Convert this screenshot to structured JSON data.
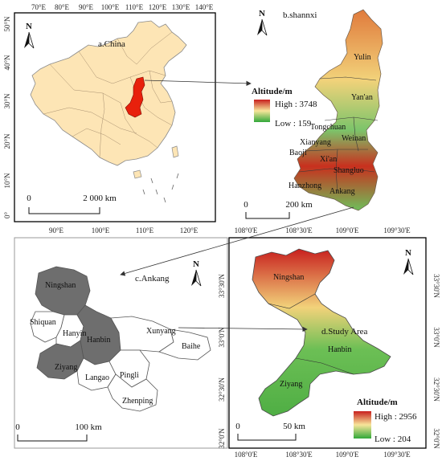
{
  "panels": {
    "china": {
      "label": "a.China",
      "top_ticks": [
        "70°E",
        "80°E",
        "90°E",
        "100°E",
        "110°E",
        "120°E",
        "130°E",
        "140°E"
      ],
      "bottom_ticks": [
        "90°E",
        "100°E",
        "110°E",
        "120°E"
      ],
      "left_ticks": [
        "50°N",
        "40°N",
        "30°N",
        "20°N",
        "10°N",
        "0°"
      ],
      "scale": {
        "zero": "0",
        "distance": "2 000 km"
      },
      "north": "N"
    },
    "shannxi": {
      "label": "b.shannxi",
      "north": "N",
      "legend": {
        "title": "Altitude/m",
        "high": "High : 3748",
        "low": "Low : 159"
      },
      "places": [
        "Yulin",
        "Yan'an",
        "Tongchuan",
        "Weinan",
        "Xianyang",
        "Baoji",
        "Xi'an",
        "Shangluo",
        "Hanzhong",
        "Ankang"
      ],
      "scale": {
        "zero": "0",
        "distance": "200 km"
      }
    },
    "ankang": {
      "label": "c.Ankang",
      "north": "N",
      "counties": [
        "Ningshan",
        "Shiquan",
        "Hanyin",
        "Hanbin",
        "Xunyang",
        "Baihe",
        "Ziyang",
        "Langao",
        "Pingli",
        "Zhenping"
      ],
      "scale": {
        "zero": "0",
        "distance": "100 km"
      }
    },
    "study": {
      "label": "d.Study Area",
      "north": "N",
      "top_ticks": [
        "108°0'E",
        "108°30'E",
        "109°0'E",
        "109°30'E"
      ],
      "bottom_ticks": [
        "108°0'E",
        "108°30'E",
        "109°0'E",
        "109°30'E"
      ],
      "left_ticks": [
        "33°30'N",
        "33°0'N",
        "32°30'N",
        "32°0'N"
      ],
      "right_ticks": [
        "33°30'N",
        "33°0'N",
        "32°30'N",
        "32°0'N"
      ],
      "places": [
        "Ningshan",
        "Hanbin",
        "Ziyang"
      ],
      "legend": {
        "title": "Altitude/m",
        "high": "High : 2956",
        "low": "Low : 204"
      },
      "scale": {
        "zero": "0",
        "distance": "50 km"
      }
    }
  },
  "colors": {
    "china_fill": "#fde5b5",
    "shaanxi_highlight": "#e8200c",
    "county_gray": "#6e6e6e",
    "dem_high": "#c8201e",
    "dem_mid": "#f7e59a",
    "dem_low": "#31a83a"
  }
}
